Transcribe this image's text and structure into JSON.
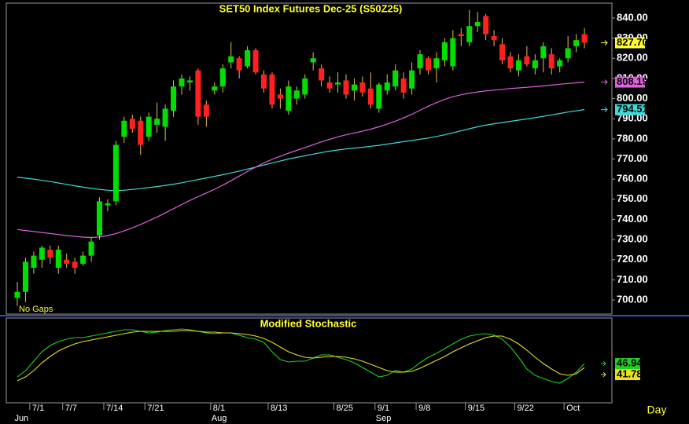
{
  "chart_data": [
    {
      "type": "candlestick",
      "title": "SET50  Index  Futures  Dec-25  (S50Z25)",
      "annotation": "No  Gaps",
      "categories": [
        null,
        null,
        "7/1",
        null,
        null,
        null,
        "7/7",
        null,
        null,
        null,
        null,
        "7/14",
        null,
        null,
        null,
        null,
        "7/21",
        null,
        null,
        null,
        null,
        null,
        null,
        null,
        "8/1",
        null,
        null,
        null,
        null,
        null,
        null,
        "8/13",
        null,
        null,
        null,
        null,
        null,
        null,
        null,
        "8/25",
        null,
        null,
        null,
        null,
        "9/1",
        null,
        null,
        null,
        null,
        "9/8",
        null,
        null,
        null,
        null,
        null,
        "9/15",
        null,
        null,
        null,
        null,
        null,
        "9/22",
        null,
        null,
        null,
        null,
        null,
        "Oct",
        null,
        null
      ],
      "months": [
        null,
        "Jun",
        null,
        null,
        null,
        null,
        null,
        null,
        null,
        null,
        null,
        null,
        null,
        null,
        null,
        null,
        null,
        null,
        null,
        null,
        null,
        null,
        null,
        null,
        "Aug",
        null,
        null,
        null,
        null,
        null,
        null,
        null,
        null,
        null,
        null,
        null,
        null,
        null,
        null,
        null,
        null,
        null,
        null,
        null,
        "Sep",
        null,
        null,
        null,
        null,
        null,
        null,
        null,
        null,
        null,
        null,
        null,
        null,
        null,
        null,
        null,
        null,
        null,
        null,
        null,
        null,
        null,
        null,
        null,
        null,
        null
      ],
      "open": [
        701,
        704,
        716,
        720,
        725,
        716,
        720,
        719,
        718,
        722,
        732,
        747,
        749,
        781,
        790,
        789,
        781,
        787,
        786,
        794,
        806,
        808,
        814,
        797,
        804,
        806,
        818,
        820,
        816,
        824,
        812,
        812,
        802,
        794,
        800,
        802,
        818,
        815,
        808,
        807,
        809,
        804,
        808,
        805,
        795,
        804,
        806,
        810,
        805,
        815,
        820,
        815,
        819,
        816,
        832,
        828,
        836,
        841,
        831,
        827,
        821,
        814,
        821,
        815,
        820,
        822,
        816,
        820,
        826,
        832
      ],
      "high": [
        709,
        721,
        724,
        727,
        727,
        727,
        723,
        721,
        724,
        731,
        751,
        750,
        779,
        791,
        792,
        791,
        793,
        798,
        797,
        809,
        812,
        811,
        815,
        799,
        808,
        817,
        828,
        821,
        826,
        825,
        814,
        813,
        805,
        809,
        806,
        812,
        823,
        817,
        811,
        813,
        812,
        810,
        811,
        813,
        808,
        812,
        817,
        813,
        818,
        824,
        821,
        823,
        830,
        834,
        835,
        844,
        843,
        842,
        834,
        830,
        823,
        822,
        826,
        822,
        828,
        825,
        820,
        831,
        832,
        835
      ],
      "low": [
        697,
        699,
        713,
        716,
        718,
        713,
        716,
        713,
        717,
        719,
        730,
        744,
        747,
        778,
        783,
        772,
        779,
        783,
        779,
        791,
        802,
        804,
        787,
        786,
        802,
        803,
        815,
        810,
        815,
        812,
        803,
        795,
        795,
        792,
        797,
        800,
        814,
        806,
        803,
        803,
        800,
        799,
        801,
        795,
        793,
        802,
        804,
        800,
        802,
        812,
        812,
        808,
        816,
        814,
        826,
        826,
        833,
        829,
        826,
        817,
        813,
        811,
        816,
        812,
        813,
        812,
        813,
        818,
        823,
        825
      ],
      "close": [
        704,
        719,
        722,
        726,
        721,
        725,
        718,
        716,
        722,
        729,
        749,
        748,
        777,
        789,
        785,
        777,
        791,
        790,
        795,
        806,
        810,
        809,
        791,
        791,
        806,
        815,
        821,
        814,
        824,
        813,
        805,
        797,
        800,
        806,
        804,
        810,
        820,
        809,
        805,
        808,
        802,
        807,
        803,
        797,
        807,
        808,
        814,
        803,
        814,
        822,
        814,
        820,
        828,
        830,
        831,
        836,
        838,
        832,
        829,
        819,
        815,
        819,
        817,
        819,
        826,
        815,
        819,
        825,
        829,
        827.7
      ],
      "close_value_label": "827.70",
      "up_color": "#00e000",
      "down_color": "#ff2020",
      "wick_color": "#e0c060",
      "series": [
        {
          "color": "#40d8d8",
          "value_label": "794.51",
          "values": [
            761.0,
            760.5,
            760.0,
            759.4,
            758.8,
            758.1,
            757.4,
            756.7,
            756.0,
            755.4,
            754.9,
            754.5,
            754.3,
            754.5,
            754.9,
            755.3,
            755.8,
            756.3,
            756.9,
            757.5,
            758.2,
            759.0,
            759.8,
            760.6,
            761.4,
            762.2,
            763.1,
            764.0,
            765.0,
            766.0,
            767.0,
            768.0,
            769.0,
            770.0,
            770.8,
            771.6,
            772.4,
            773.2,
            773.9,
            774.5,
            775.0,
            775.4,
            775.8,
            776.3,
            776.8,
            777.4,
            778.0,
            778.6,
            779.2,
            779.8,
            780.4,
            781.2,
            782.0,
            783.0,
            784.0,
            785.0,
            786.0,
            786.8,
            787.5,
            788.1,
            788.7,
            789.3,
            789.9,
            790.5,
            791.2,
            791.9,
            792.6,
            793.3,
            793.9,
            794.51
          ]
        },
        {
          "color": "#e060e0",
          "value_label": "808.19",
          "values": [
            735.0,
            734.5,
            734.0,
            733.5,
            733.0,
            732.5,
            732.0,
            731.6,
            731.2,
            731.0,
            731.3,
            732.0,
            733.0,
            734.3,
            735.8,
            737.5,
            739.3,
            741.2,
            743.2,
            745.3,
            747.4,
            749.4,
            751.3,
            753.1,
            755.0,
            757.0,
            759.2,
            761.5,
            763.8,
            766.0,
            768.0,
            769.8,
            771.4,
            772.9,
            774.3,
            775.7,
            777.1,
            778.5,
            779.8,
            781.0,
            782.0,
            782.9,
            783.8,
            784.8,
            786.0,
            787.3,
            788.8,
            790.4,
            792.2,
            794.2,
            796.2,
            798.0,
            799.6,
            800.9,
            801.9,
            802.7,
            803.3,
            803.8,
            804.2,
            804.6,
            805.0,
            805.3,
            805.6,
            805.9,
            806.3,
            806.7,
            807.1,
            807.5,
            807.8,
            808.19
          ]
        }
      ],
      "ylim": [
        693,
        847
      ],
      "yticks": [
        {
          "value": 700,
          "label": "700.00"
        },
        {
          "value": 710,
          "label": "710.00"
        },
        {
          "value": 720,
          "label": "720.00"
        },
        {
          "value": 730,
          "label": "730.00"
        },
        {
          "value": 740,
          "label": "740.00"
        },
        {
          "value": 750,
          "label": "750.00"
        },
        {
          "value": 760,
          "label": "760.00"
        },
        {
          "value": 770,
          "label": "770.00"
        },
        {
          "value": 780,
          "label": "780.00"
        },
        {
          "value": 790,
          "label": "790.00"
        },
        {
          "value": 800,
          "label": "800.00"
        },
        {
          "value": 810,
          "label": "810.00"
        },
        {
          "value": 820,
          "label": "820.00"
        },
        {
          "value": 830,
          "label": "830.00"
        },
        {
          "value": 840,
          "label": "840.00"
        }
      ],
      "period": "Day"
    },
    {
      "type": "line",
      "title": "Modified  Stochastic",
      "ylim": [
        0,
        100
      ],
      "series": [
        {
          "color": "#20d020",
          "value_label": "46.94",
          "values": [
            30,
            38,
            50,
            62,
            70,
            75,
            78,
            80,
            80,
            82,
            84,
            86,
            88,
            90,
            90,
            88,
            86,
            87,
            89,
            90,
            91,
            90,
            88,
            86,
            85,
            86,
            86,
            83,
            80,
            78,
            74,
            62,
            52,
            49,
            50,
            50,
            54,
            58,
            58,
            55,
            52,
            48,
            42,
            36,
            30,
            32,
            38,
            36,
            40,
            48,
            55,
            60,
            66,
            72,
            78,
            82,
            84,
            85,
            83,
            78,
            68,
            55,
            40,
            32,
            28,
            24,
            22,
            28,
            36,
            46.94
          ]
        },
        {
          "color": "#e8e020",
          "value_label": "41.78",
          "values": [
            25,
            30,
            38,
            48,
            56,
            63,
            68,
            72,
            75,
            77,
            79,
            81,
            83,
            85,
            87,
            88,
            88,
            88,
            88,
            88,
            89,
            89,
            88,
            87,
            87,
            86,
            86,
            85,
            84,
            82,
            79,
            74,
            68,
            62,
            58,
            55,
            54,
            55,
            56,
            56,
            55,
            53,
            50,
            46,
            42,
            38,
            36,
            36,
            37,
            41,
            46,
            51,
            56,
            62,
            67,
            72,
            76,
            80,
            82,
            82,
            78,
            72,
            64,
            55,
            47,
            40,
            34,
            32,
            34,
            41.78
          ]
        }
      ]
    }
  ]
}
